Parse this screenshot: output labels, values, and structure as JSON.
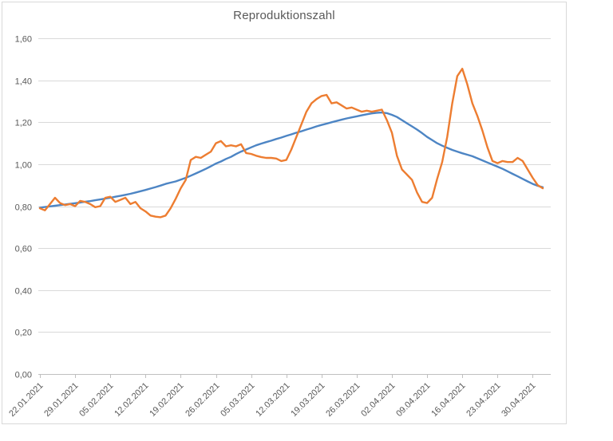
{
  "chart_data": {
    "type": "line",
    "title": "Reproduktionszahl",
    "xlabel": "",
    "ylabel": "",
    "x_unit": "day",
    "x_start_label": "22.01.2021",
    "x_end_label": "02.05.2021",
    "x_tick_interval_days": 7,
    "x_tick_labels": [
      "22.01.2021",
      "29.01.2021",
      "05.02.2021",
      "12.02.2021",
      "19.02.2021",
      "26.02.2021",
      "05.03.2021",
      "12.03.2021",
      "19.03.2021",
      "26.03.2021",
      "02.04.2021",
      "09.04.2021",
      "16.04.2021",
      "23.04.2021",
      "30.04.2021"
    ],
    "y_tick_labels": [
      "0,00",
      "0,20",
      "0,40",
      "0,60",
      "0,80",
      "1,00",
      "1,20",
      "1,40",
      "1,60"
    ],
    "ylim": [
      0,
      1.6
    ],
    "y_tick_step": 0.2,
    "grid": "horizontal",
    "legend": "none",
    "series": [
      {
        "name": "series-blue-smooth",
        "color": "#4D85C4",
        "values": [
          0.793,
          0.796,
          0.799,
          0.802,
          0.805,
          0.808,
          0.811,
          0.814,
          0.817,
          0.821,
          0.824,
          0.828,
          0.832,
          0.836,
          0.84,
          0.845,
          0.849,
          0.854,
          0.859,
          0.865,
          0.871,
          0.877,
          0.884,
          0.891,
          0.898,
          0.906,
          0.912,
          0.918,
          0.926,
          0.935,
          0.945,
          0.956,
          0.967,
          0.978,
          0.99,
          1.003,
          1.013,
          1.025,
          1.035,
          1.048,
          1.06,
          1.07,
          1.08,
          1.09,
          1.098,
          1.105,
          1.112,
          1.12,
          1.127,
          1.135,
          1.142,
          1.15,
          1.157,
          1.165,
          1.172,
          1.18,
          1.187,
          1.193,
          1.2,
          1.206,
          1.212,
          1.218,
          1.223,
          1.228,
          1.233,
          1.238,
          1.242,
          1.245,
          1.246,
          1.243,
          1.235,
          1.225,
          1.21,
          1.195,
          1.18,
          1.165,
          1.148,
          1.13,
          1.115,
          1.1,
          1.088,
          1.078,
          1.068,
          1.06,
          1.052,
          1.045,
          1.038,
          1.028,
          1.018,
          1.008,
          0.998,
          0.988,
          0.978,
          0.966,
          0.954,
          0.942,
          0.93,
          0.918,
          0.906,
          0.897,
          0.89
        ]
      },
      {
        "name": "series-orange-jagged",
        "color": "#ED7D31",
        "values": [
          0.79,
          0.78,
          0.81,
          0.84,
          0.815,
          0.805,
          0.81,
          0.8,
          0.825,
          0.82,
          0.81,
          0.795,
          0.8,
          0.84,
          0.845,
          0.82,
          0.83,
          0.84,
          0.81,
          0.82,
          0.79,
          0.775,
          0.755,
          0.75,
          0.747,
          0.755,
          0.79,
          0.835,
          0.885,
          0.925,
          1.02,
          1.035,
          1.03,
          1.045,
          1.06,
          1.1,
          1.11,
          1.085,
          1.09,
          1.085,
          1.095,
          1.053,
          1.049,
          1.04,
          1.034,
          1.03,
          1.03,
          1.027,
          1.015,
          1.02,
          1.07,
          1.13,
          1.19,
          1.25,
          1.29,
          1.31,
          1.325,
          1.33,
          1.29,
          1.295,
          1.28,
          1.265,
          1.27,
          1.26,
          1.25,
          1.255,
          1.25,
          1.255,
          1.26,
          1.21,
          1.15,
          1.04,
          0.975,
          0.95,
          0.925,
          0.865,
          0.82,
          0.815,
          0.84,
          0.93,
          1.01,
          1.13,
          1.29,
          1.42,
          1.455,
          1.38,
          1.29,
          1.23,
          1.16,
          1.08,
          1.015,
          1.005,
          1.015,
          1.01,
          1.01,
          1.03,
          1.015,
          0.975,
          0.935,
          0.9,
          0.885
        ]
      }
    ]
  },
  "style": {
    "background": "#FFFFFF",
    "frame_color": "#D9D9D9",
    "grid_color": "#D9D9D9",
    "axis_color": "#BFBFBF",
    "label_color": "#595959",
    "title_color": "#595959"
  }
}
